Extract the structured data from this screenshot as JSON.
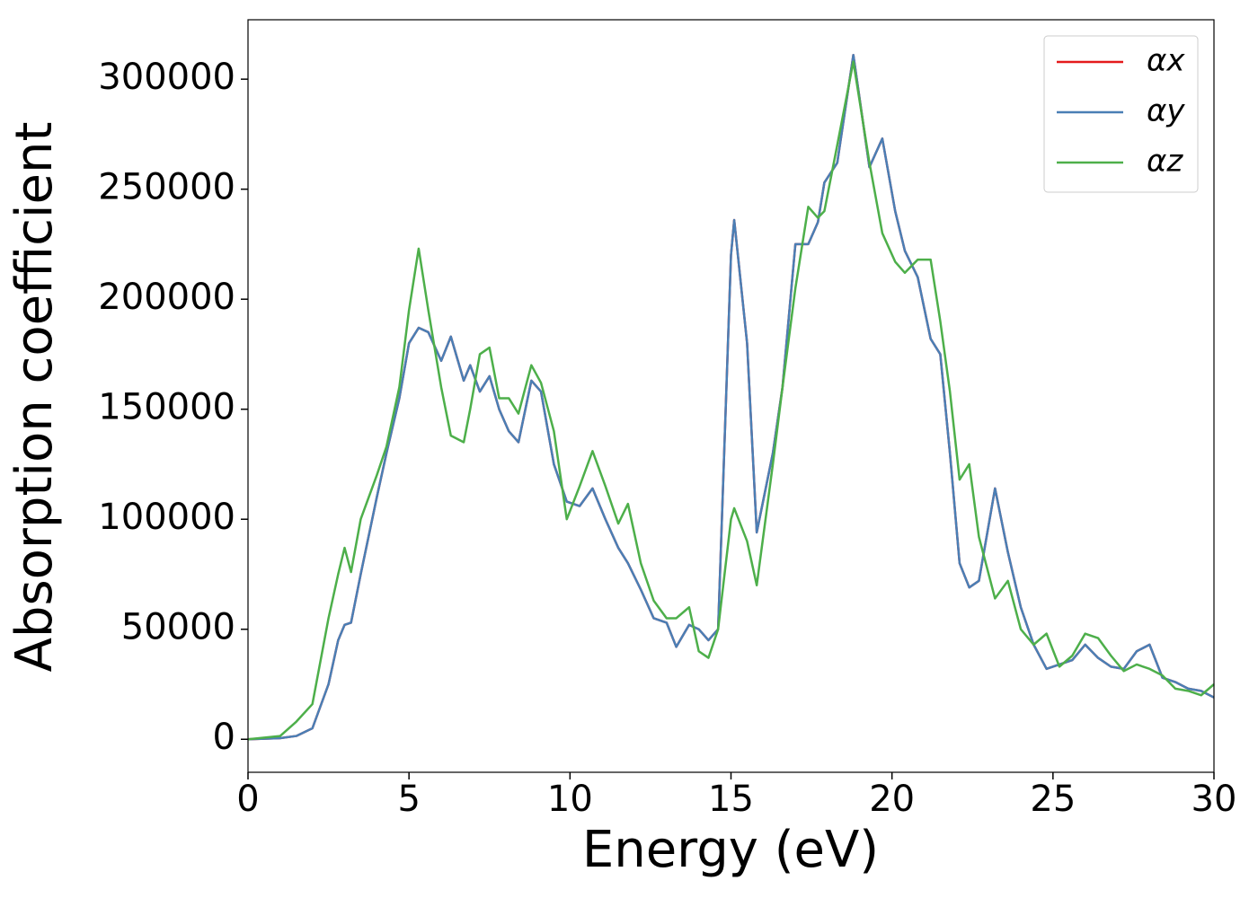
{
  "chart_data": {
    "type": "line",
    "xlabel": "Energy (eV)",
    "ylabel": "Absorption coefficient",
    "x": [
      0,
      1,
      1.5,
      2,
      2.5,
      2.8,
      3,
      3.2,
      3.5,
      4,
      4.3,
      4.7,
      5,
      5.3,
      5.6,
      6,
      6.3,
      6.7,
      6.9,
      7.2,
      7.5,
      7.8,
      8.1,
      8.4,
      8.8,
      9.1,
      9.5,
      9.9,
      10.3,
      10.7,
      11.1,
      11.5,
      11.8,
      12.2,
      12.6,
      13,
      13.3,
      13.7,
      14,
      14.3,
      14.6,
      15,
      15.1,
      15.5,
      15.8,
      16.3,
      16.6,
      17,
      17.4,
      17.7,
      17.9,
      18.3,
      18.8,
      19.3,
      19.7,
      20.1,
      20.4,
      20.8,
      21.2,
      21.5,
      21.8,
      22.1,
      22.4,
      22.7,
      23.2,
      23.6,
      24,
      24.4,
      24.8,
      25.2,
      25.6,
      26,
      26.4,
      26.8,
      27.2,
      27.6,
      28,
      28.4,
      28.8,
      29.2,
      29.6,
      30
    ],
    "series": [
      {
        "name": "αx",
        "color": "#e41a1c",
        "values": [
          0,
          500,
          1500,
          5000,
          25000,
          45000,
          52000,
          53000,
          75000,
          110000,
          130000,
          155000,
          180000,
          187000,
          185000,
          172000,
          183000,
          163000,
          170000,
          158000,
          165000,
          150000,
          140000,
          135000,
          163000,
          158000,
          125000,
          108000,
          106000,
          114000,
          100000,
          87000,
          80000,
          68000,
          55000,
          53000,
          42000,
          52000,
          50000,
          45000,
          50000,
          220000,
          236000,
          180000,
          94000,
          130000,
          160000,
          225000,
          225000,
          235000,
          253000,
          262000,
          311000,
          260000,
          273000,
          240000,
          222000,
          210000,
          182000,
          175000,
          130000,
          80000,
          69000,
          72000,
          114000,
          85000,
          60000,
          43000,
          32000,
          34000,
          36000,
          43000,
          37000,
          33000,
          32000,
          40000,
          43000,
          28000,
          26000,
          23000,
          22000,
          19000
        ]
      },
      {
        "name": "αy",
        "color": "#4a7fb5",
        "values": [
          0,
          500,
          1500,
          5000,
          25000,
          45000,
          52000,
          53000,
          75000,
          110000,
          130000,
          155000,
          180000,
          187000,
          185000,
          172000,
          183000,
          163000,
          170000,
          158000,
          165000,
          150000,
          140000,
          135000,
          163000,
          158000,
          125000,
          108000,
          106000,
          114000,
          100000,
          87000,
          80000,
          68000,
          55000,
          53000,
          42000,
          52000,
          50000,
          45000,
          50000,
          220000,
          236000,
          180000,
          94000,
          130000,
          160000,
          225000,
          225000,
          235000,
          253000,
          262000,
          311000,
          260000,
          273000,
          240000,
          222000,
          210000,
          182000,
          175000,
          130000,
          80000,
          69000,
          72000,
          114000,
          85000,
          60000,
          43000,
          32000,
          34000,
          36000,
          43000,
          37000,
          33000,
          32000,
          40000,
          43000,
          28000,
          26000,
          23000,
          22000,
          19000
        ]
      },
      {
        "name": "αz",
        "color": "#4daf4a",
        "values": [
          0,
          1500,
          8000,
          16000,
          55000,
          75000,
          87000,
          76000,
          100000,
          120000,
          133000,
          160000,
          195000,
          223000,
          195000,
          160000,
          138000,
          135000,
          150000,
          175000,
          178000,
          155000,
          155000,
          148000,
          170000,
          162000,
          140000,
          100000,
          115000,
          131000,
          115000,
          98000,
          107000,
          80000,
          63000,
          55000,
          55000,
          60000,
          40000,
          37000,
          50000,
          100000,
          105000,
          90000,
          70000,
          125000,
          160000,
          205000,
          242000,
          237000,
          240000,
          270000,
          308000,
          262000,
          230000,
          217000,
          212000,
          218000,
          218000,
          190000,
          158000,
          118000,
          125000,
          92000,
          64000,
          72000,
          50000,
          43000,
          48000,
          33000,
          38000,
          48000,
          46000,
          38000,
          31000,
          34000,
          32000,
          29000,
          23000,
          22000,
          20000,
          25000
        ]
      }
    ],
    "xlim": [
      0,
      30
    ],
    "xticks": [
      0,
      5,
      10,
      15,
      20,
      25,
      30
    ],
    "ylim": [
      -15000,
      327000
    ],
    "yticks": [
      0,
      50000,
      100000,
      150000,
      200000,
      250000,
      300000
    ],
    "legend": "upper right"
  }
}
